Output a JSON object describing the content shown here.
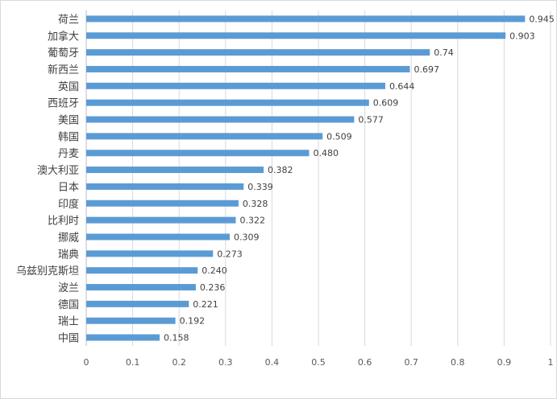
{
  "chart_data": {
    "type": "bar",
    "orientation": "horizontal",
    "categories": [
      "荷兰",
      "加拿大",
      "葡萄牙",
      "新西兰",
      "英国",
      "西班牙",
      "美国",
      "韩国",
      "丹麦",
      "澳大利亚",
      "日本",
      "印度",
      "比利时",
      "挪威",
      "瑞典",
      "乌兹别克斯坦",
      "波兰",
      "德国",
      "瑞士",
      "中国"
    ],
    "values": [
      0.945,
      0.903,
      0.74,
      0.697,
      0.644,
      0.609,
      0.577,
      0.509,
      0.48,
      0.382,
      0.339,
      0.328,
      0.322,
      0.309,
      0.273,
      0.24,
      0.236,
      0.221,
      0.192,
      0.158
    ],
    "value_labels": [
      "0.945",
      "0.903",
      "0.74",
      "0.697",
      "0.644",
      "0.609",
      "0.577",
      "0.509",
      "0.480",
      "0.382",
      "0.339",
      "0.328",
      "0.322",
      "0.309",
      "0.273",
      "0.240",
      "0.236",
      "0.221",
      "0.192",
      "0.158"
    ],
    "xlim": [
      0,
      1
    ],
    "x_ticks": [
      "0",
      "0.1",
      "0.2",
      "0.3",
      "0.4",
      "0.5",
      "0.6",
      "0.7",
      "0.8",
      "0.9",
      "1"
    ],
    "grid": "vertical",
    "legend": "none",
    "title": "",
    "xlabel": "",
    "ylabel": "",
    "bar_color": "#5b9bd5"
  }
}
